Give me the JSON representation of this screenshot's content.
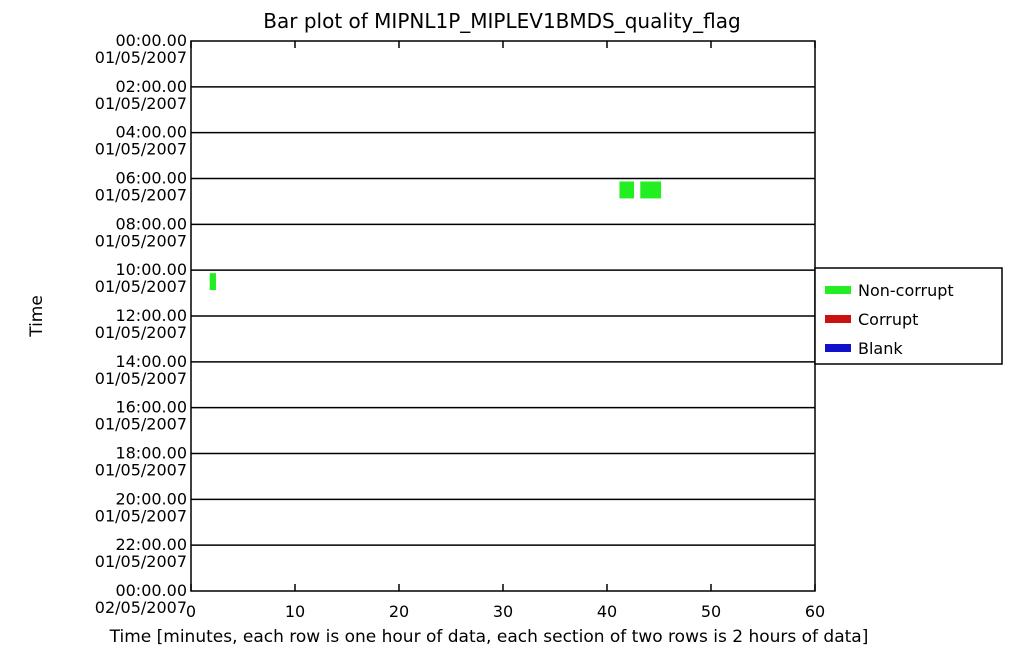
{
  "chart_data": {
    "type": "bar",
    "title": "Bar plot of MIPNL1P_MIPLEV1BMDS_quality_flag",
    "xlabel": "Time [minutes, each row is one hour of data, each section of two rows is 2 hours of data]",
    "ylabel": "Time",
    "xlim": [
      0,
      60
    ],
    "x_ticks": [
      "0",
      "10",
      "20",
      "30",
      "40",
      "50",
      "60"
    ],
    "x_tick_values": [
      0,
      10,
      20,
      30,
      40,
      50,
      60
    ],
    "hours_range": [
      0,
      24
    ],
    "y_ticks": [
      {
        "time": "00:00.00",
        "date": "01/05/2007"
      },
      {
        "time": "02:00.00",
        "date": "01/05/2007"
      },
      {
        "time": "04:00.00",
        "date": "01/05/2007"
      },
      {
        "time": "06:00.00",
        "date": "01/05/2007"
      },
      {
        "time": "08:00.00",
        "date": "01/05/2007"
      },
      {
        "time": "10:00.00",
        "date": "01/05/2007"
      },
      {
        "time": "12:00.00",
        "date": "01/05/2007"
      },
      {
        "time": "14:00.00",
        "date": "01/05/2007"
      },
      {
        "time": "16:00.00",
        "date": "01/05/2007"
      },
      {
        "time": "18:00.00",
        "date": "01/05/2007"
      },
      {
        "time": "20:00.00",
        "date": "01/05/2007"
      },
      {
        "time": "22:00.00",
        "date": "01/05/2007"
      },
      {
        "time": "00:00.00",
        "date": "02/05/2007"
      }
    ],
    "legend": {
      "placement": "right",
      "entries": [
        {
          "name": "Non-corrupt",
          "color": "#22ee22"
        },
        {
          "name": "Corrupt",
          "color": "#cc1111"
        },
        {
          "name": "Blank",
          "color": "#1111cc"
        }
      ]
    },
    "series": [
      {
        "name": "Non-corrupt",
        "color": "#22ee22",
        "segments": [
          {
            "hour": 6,
            "start_min": 41.2,
            "end_min": 42.6
          },
          {
            "hour": 6,
            "start_min": 43.2,
            "end_min": 45.2
          },
          {
            "hour": 10,
            "start_min": 1.8,
            "end_min": 2.4
          }
        ]
      },
      {
        "name": "Corrupt",
        "color": "#cc1111",
        "segments": []
      },
      {
        "name": "Blank",
        "color": "#1111cc",
        "segments": []
      }
    ],
    "grid": "horizontal lines every 2 hours"
  }
}
